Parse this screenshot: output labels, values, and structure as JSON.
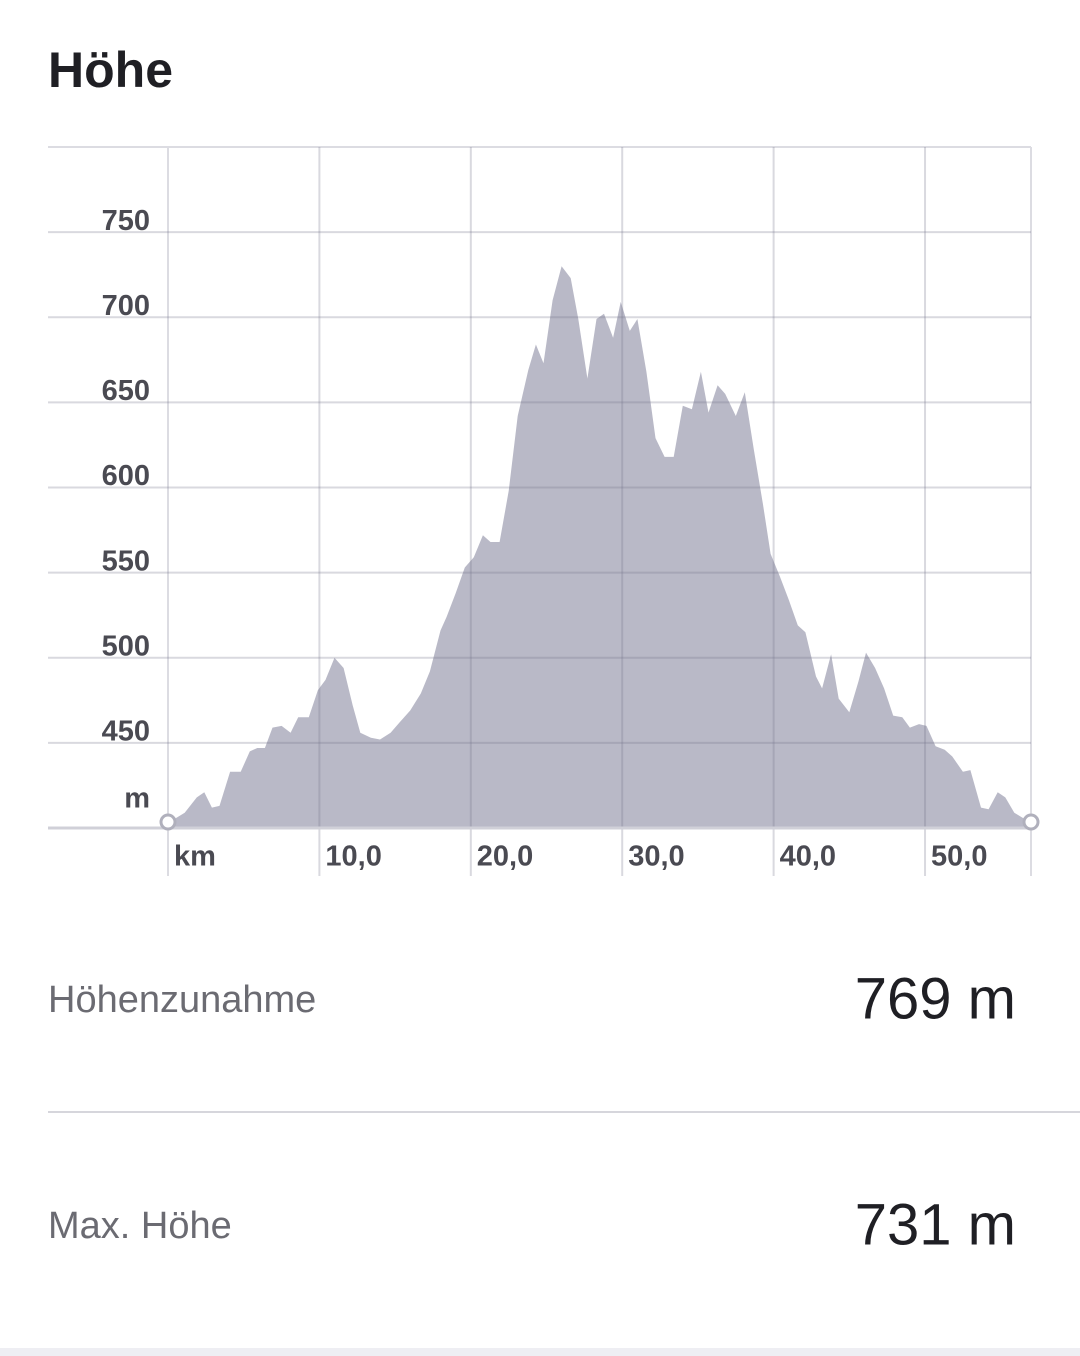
{
  "header": {
    "title": "Höhe"
  },
  "chart_data": {
    "type": "area",
    "color": "#b9b9c7",
    "x_label": "km",
    "y_label": "m",
    "x": [
      0,
      1.1,
      1.9,
      2.4,
      2.9,
      3.4,
      4.1,
      4.8,
      5.4,
      5.9,
      6.4,
      6.9,
      7.5,
      8.1,
      8.6,
      9.3,
      9.9,
      10.4,
      11.0,
      11.6,
      12.2,
      12.7,
      13.4,
      14.0,
      14.7,
      15.3,
      16.0,
      16.7,
      17.3,
      18.0,
      18.4,
      19.0,
      19.6,
      20.2,
      20.8,
      21.3,
      21.9,
      22.5,
      23.1,
      23.8,
      24.3,
      24.8,
      25.4,
      26.0,
      26.6,
      27.1,
      27.7,
      28.3,
      28.8,
      29.4,
      29.9,
      30.5,
      31.0,
      31.6,
      32.2,
      32.8,
      33.4,
      34.0,
      34.6,
      35.2,
      35.7,
      36.3,
      36.8,
      37.5,
      38.1,
      38.7,
      39.3,
      39.8,
      40.4,
      41.0,
      41.6,
      42.1,
      42.8,
      43.2,
      43.8,
      44.3,
      45.0,
      45.6,
      46.1,
      46.7,
      47.3,
      47.9,
      48.5,
      49.0,
      49.6,
      50.1,
      50.7,
      51.3,
      51.8,
      52.5,
      53.0,
      53.7,
      54.2,
      54.8,
      55.3,
      55.9,
      57.0
    ],
    "values": [
      403,
      409,
      418,
      421,
      412,
      413,
      433,
      433,
      445,
      447,
      447,
      459,
      460,
      456,
      465,
      465,
      481,
      487,
      500,
      494,
      472,
      456,
      453,
      452,
      456,
      462,
      469,
      479,
      492,
      516,
      524,
      538,
      553,
      559,
      572,
      568,
      568,
      598,
      642,
      669,
      684,
      673,
      710,
      730,
      723,
      699,
      664,
      699,
      702,
      688,
      709,
      692,
      699,
      668,
      629,
      618,
      618,
      648,
      646,
      668,
      644,
      660,
      655,
      642,
      656,
      622,
      590,
      561,
      548,
      534,
      519,
      515,
      489,
      482,
      502,
      476,
      468,
      486,
      503,
      494,
      482,
      466,
      465,
      459,
      461,
      460,
      448,
      446,
      442,
      433,
      434,
      412,
      411,
      421,
      418,
      409,
      403
    ],
    "xlim": [
      0,
      57
    ],
    "xticks": [
      {
        "value": 10,
        "label": "10,0"
      },
      {
        "value": 20,
        "label": "20,0"
      },
      {
        "value": 30,
        "label": "30,0"
      },
      {
        "value": 40,
        "label": "40,0"
      },
      {
        "value": 50,
        "label": "50,0"
      }
    ],
    "ylim": [
      400,
      800
    ],
    "yticks": [
      450,
      500,
      550,
      600,
      650,
      700,
      750
    ],
    "grid": true
  },
  "stats": [
    {
      "label": "Höhenzunahme",
      "value": "769 m"
    },
    {
      "label": "Max. Höhe",
      "value": "731 m"
    }
  ]
}
